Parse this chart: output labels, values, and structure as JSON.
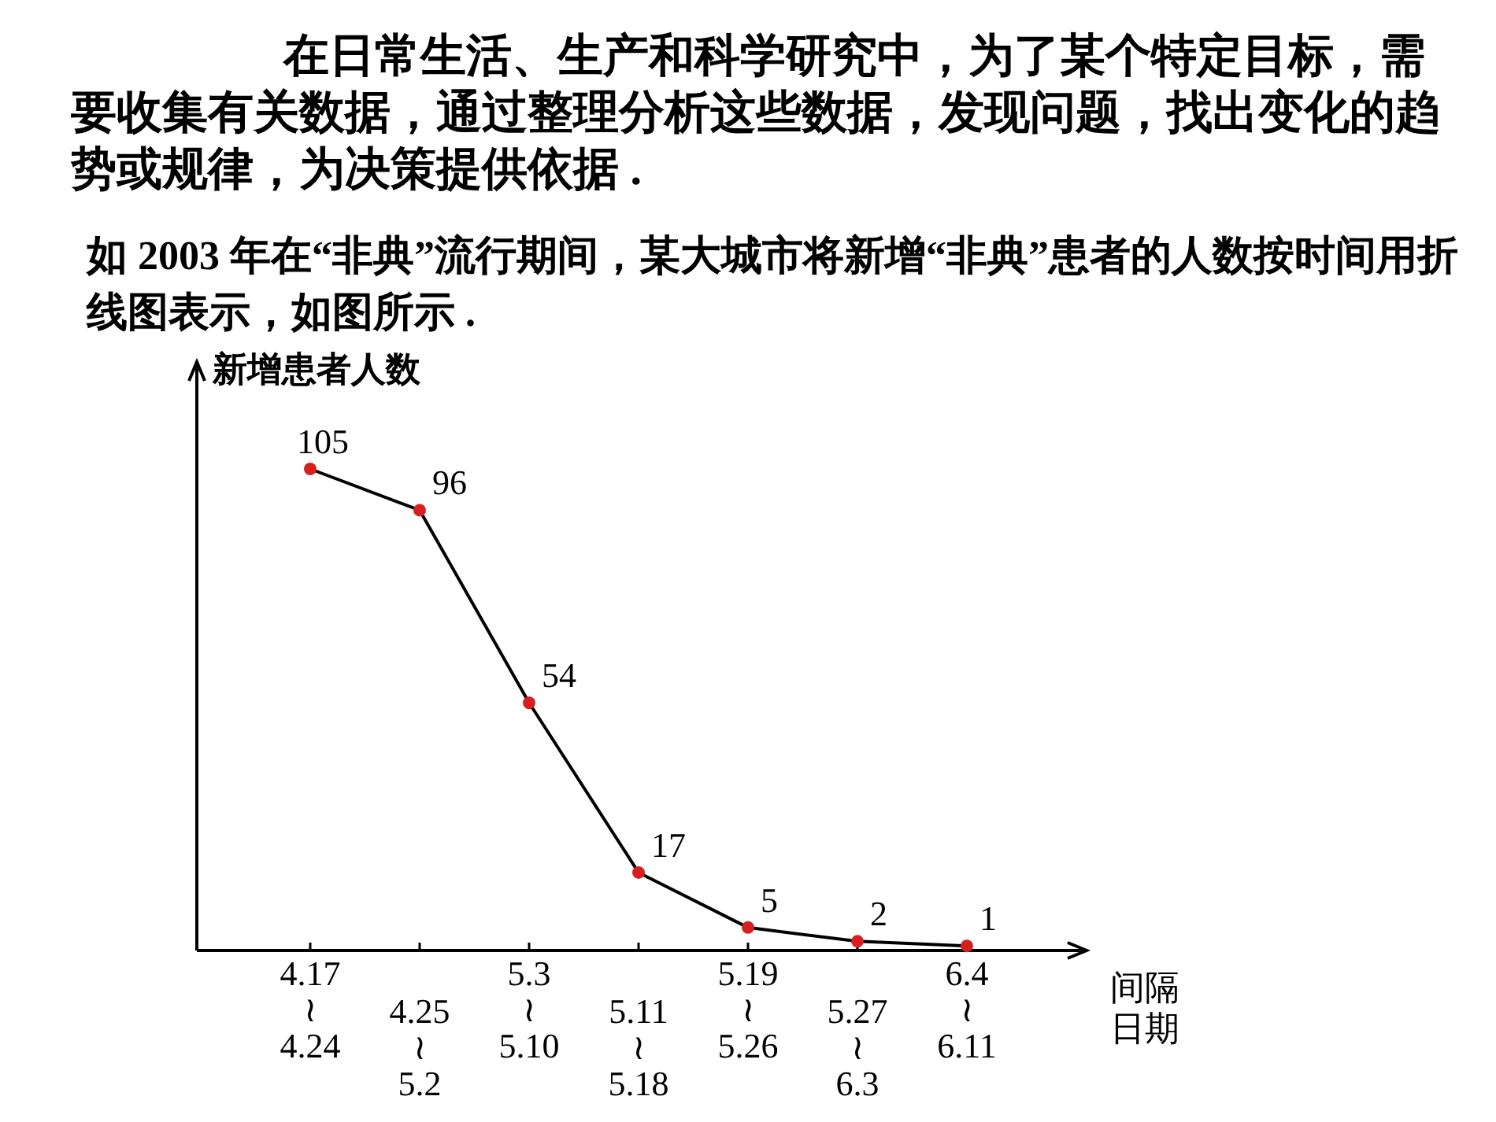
{
  "chart_data": {
    "type": "line",
    "title": "在日常生活、生产和科学研究中，为了某个特定目标，需要收集有关数据，通过整理分析这些数据，发现问题，找出变化的趋势或规律，为决策提供依据 .",
    "subtitle": "如 2003 年在“非典”流行期间，某大城市将新增“非典”患者的人数按时间用折线图表示，如图所示 .",
    "ylabel": "新增患者人数",
    "xlabel": "间隔日期",
    "categories": [
      "4.17\n≀\n4.24",
      "4.25\n≀\n5.2",
      "5.3\n≀\n5.10",
      "5.11\n≀\n5.18",
      "5.19\n≀\n5.26",
      "5.27\n≀\n6.3",
      "6.4\n≀\n6.11"
    ],
    "values": [
      105,
      96,
      54,
      17,
      5,
      2,
      1
    ],
    "color": "#d62020",
    "marker": "circle",
    "data_labels": true
  }
}
